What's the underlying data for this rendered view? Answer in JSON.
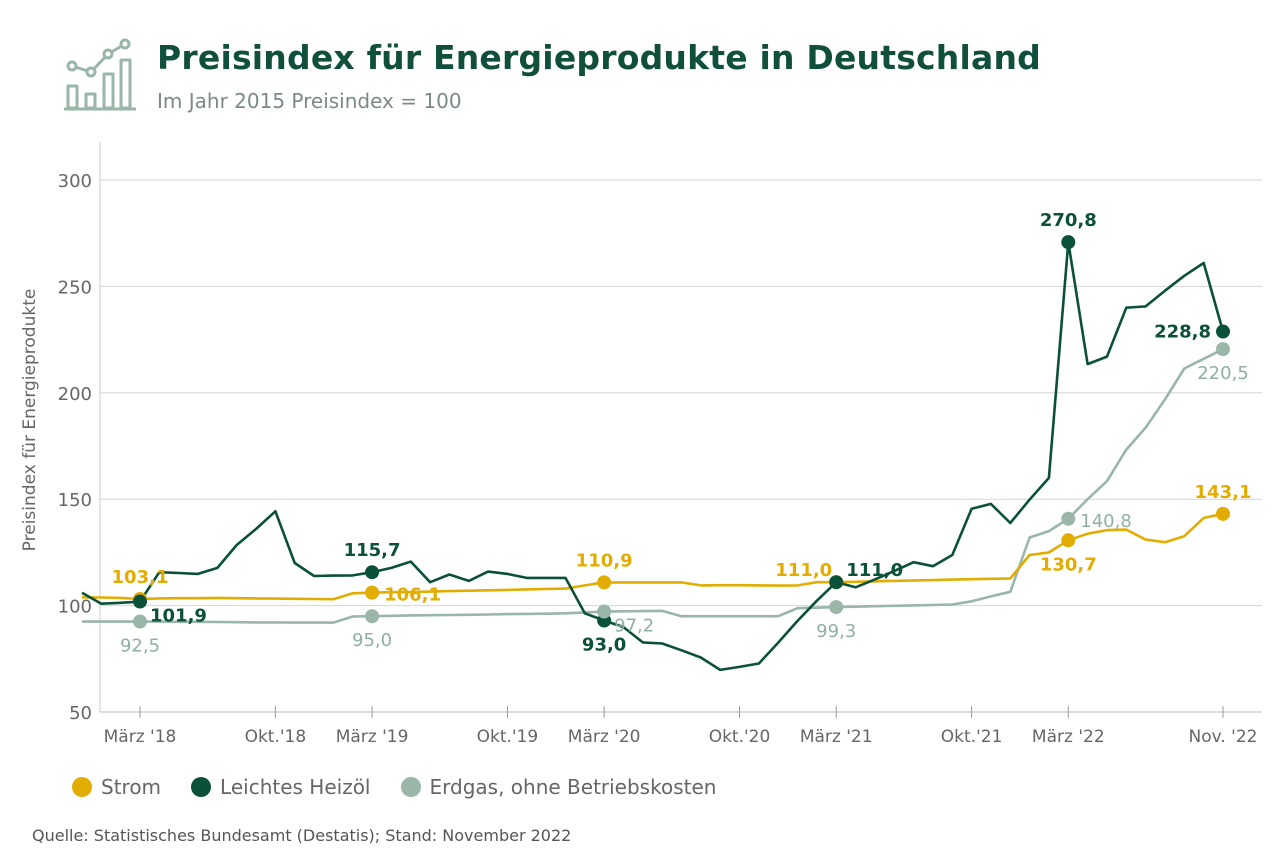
{
  "title": "Preisindex für Energieprodukte in Deutschland",
  "subtitle": "Im Jahr 2015 Preisindex = 100",
  "source": "Quelle: Statistisches Bundesamt (Destatis); Stand: November 2022",
  "legend": [
    {
      "label": "Strom",
      "color": "#e3ac00"
    },
    {
      "label": "Leichtes Heizöl",
      "color": "#0b5138"
    },
    {
      "label": "Erdgas, ohne Betriebskosten",
      "color": "#99b6a8"
    }
  ],
  "chart_data": {
    "type": "line",
    "ylabel": "Preisindex für Energieprodukte",
    "ylim": [
      50,
      320
    ],
    "yticks": [
      50,
      100,
      150,
      200,
      250,
      300
    ],
    "x_tick_labels": [
      "März '18",
      "Okt.'18",
      "März '19",
      "Okt.'19",
      "März '20",
      "Okt.'20",
      "März '21",
      "Okt.'21",
      "März '22",
      "Nov. '22"
    ],
    "x_tick_positions": [
      2,
      9,
      14,
      21,
      26,
      33,
      38,
      45,
      50,
      58
    ],
    "x_range": [
      -1,
      60
    ],
    "series": [
      {
        "name": "Strom",
        "color": "#e3ac00",
        "x": [
          -1,
          0,
          1,
          2,
          3,
          4,
          5,
          6,
          7,
          8,
          9,
          10,
          11,
          12,
          13,
          14,
          15,
          16,
          17,
          18,
          19,
          20,
          21,
          22,
          23,
          24,
          25,
          26,
          27,
          28,
          29,
          30,
          31,
          32,
          33,
          34,
          35,
          36,
          37,
          38,
          39,
          40,
          41,
          42,
          43,
          44,
          45,
          46,
          47,
          48,
          49,
          50,
          51,
          52,
          53,
          54,
          55,
          56,
          57,
          58
        ],
        "values": [
          103.9,
          103.8,
          103.6,
          103.1,
          103.4,
          103.5,
          103.5,
          103.6,
          103.5,
          103.4,
          103.3,
          103.2,
          103.1,
          103.0,
          105.8,
          106.1,
          106.3,
          106.4,
          106.6,
          106.8,
          107.0,
          107.2,
          107.4,
          107.6,
          107.8,
          108.0,
          109.5,
          110.9,
          110.9,
          110.9,
          110.9,
          110.9,
          109.5,
          109.6,
          109.6,
          109.5,
          109.4,
          109.5,
          111.0,
          111.0,
          111.2,
          111.4,
          111.6,
          111.8,
          112.0,
          112.2,
          112.4,
          112.6,
          112.8,
          123.8,
          125.0,
          130.7,
          133.8,
          135.5,
          135.7,
          131.0,
          129.8,
          132.6,
          141.2,
          143.1
        ]
      },
      {
        "name": "Leichtes Heizöl",
        "color": "#0b5138",
        "x": [
          -1,
          0,
          1,
          2,
          3,
          4,
          5,
          6,
          7,
          8,
          9,
          10,
          11,
          12,
          13,
          14,
          15,
          16,
          17,
          18,
          19,
          20,
          21,
          22,
          23,
          24,
          25,
          26,
          27,
          28,
          29,
          30,
          31,
          32,
          33,
          34,
          35,
          36,
          37,
          38,
          39,
          40,
          41,
          42,
          43,
          44,
          45,
          46,
          47,
          48,
          49,
          50,
          51,
          52,
          53,
          54,
          55,
          56,
          57,
          58
        ],
        "values": [
          106.0,
          100.9,
          101.3,
          101.9,
          115.7,
          115.3,
          114.9,
          117.7,
          128.5,
          136.0,
          144.3,
          120.0,
          113.9,
          114.1,
          114.2,
          115.7,
          117.7,
          120.7,
          111.0,
          114.6,
          111.6,
          116.0,
          114.9,
          113.0,
          113.0,
          113.0,
          96.4,
          93.0,
          89.9,
          82.7,
          82.2,
          79.0,
          75.6,
          69.8,
          71.2,
          72.8,
          82.6,
          92.8,
          102.3,
          111.0,
          108.6,
          112.3,
          116.2,
          120.4,
          118.5,
          123.8,
          145.5,
          147.8,
          138.8,
          149.8,
          160.0,
          270.8,
          213.5,
          217.0,
          240.0,
          240.6,
          248.0,
          255.0,
          261.0,
          228.8
        ]
      },
      {
        "name": "Erdgas, ohne Betriebskosten",
        "color": "#99b6a8",
        "x": [
          -1,
          0,
          1,
          2,
          3,
          4,
          5,
          6,
          7,
          8,
          9,
          10,
          11,
          12,
          13,
          14,
          15,
          16,
          17,
          18,
          19,
          20,
          21,
          22,
          23,
          24,
          25,
          26,
          27,
          28,
          29,
          30,
          31,
          32,
          33,
          34,
          35,
          36,
          37,
          38,
          39,
          40,
          41,
          42,
          43,
          44,
          45,
          46,
          47,
          48,
          49,
          50,
          51,
          52,
          53,
          54,
          55,
          56,
          57,
          58
        ],
        "values": [
          92.5,
          92.5,
          92.5,
          92.5,
          92.5,
          92.4,
          92.4,
          92.3,
          92.2,
          92.1,
          92.1,
          92.0,
          92.0,
          92.0,
          94.9,
          95.0,
          95.2,
          95.4,
          95.5,
          95.6,
          95.7,
          95.8,
          96.0,
          96.1,
          96.2,
          96.4,
          96.8,
          97.2,
          97.3,
          97.4,
          97.5,
          95.0,
          95.0,
          95.0,
          95.0,
          95.0,
          95.0,
          98.8,
          99.0,
          99.3,
          99.5,
          99.7,
          99.9,
          100.1,
          100.3,
          100.5,
          102.0,
          104.3,
          106.5,
          132.0,
          135.0,
          140.8,
          150.0,
          158.5,
          173.3,
          183.6,
          196.9,
          211.4,
          216.0,
          220.5
        ]
      }
    ],
    "annotations": [
      {
        "series": 0,
        "x": 2,
        "value": 103.1,
        "label": "103,1",
        "pos": "above"
      },
      {
        "series": 0,
        "x": 14,
        "value": 106.1,
        "label": "106,1",
        "pos": "right"
      },
      {
        "series": 0,
        "x": 26,
        "value": 110.9,
        "label": "110,9",
        "pos": "above"
      },
      {
        "series": 0,
        "x": 38,
        "value": 111.0,
        "label": "111,0",
        "pos": "above-left"
      },
      {
        "series": 0,
        "x": 50,
        "value": 130.7,
        "label": "130,7",
        "pos": "below"
      },
      {
        "series": 0,
        "x": 58,
        "value": 143.1,
        "label": "143,1",
        "pos": "above"
      },
      {
        "series": 1,
        "x": 2,
        "value": 101.9,
        "label": "101,9",
        "pos": "right-below"
      },
      {
        "series": 1,
        "x": 14,
        "value": 115.7,
        "label": "115,7",
        "pos": "above"
      },
      {
        "series": 1,
        "x": 26,
        "value": 93.0,
        "label": "93,0",
        "pos": "below"
      },
      {
        "series": 1,
        "x": 38,
        "value": 111.0,
        "label": "111,0",
        "pos": "above-right"
      },
      {
        "series": 1,
        "x": 50,
        "value": 270.8,
        "label": "270,8",
        "pos": "above"
      },
      {
        "series": 1,
        "x": 58,
        "value": 228.8,
        "label": "228,8",
        "pos": "left"
      },
      {
        "series": 2,
        "x": 2,
        "value": 92.5,
        "label": "92,5",
        "pos": "below"
      },
      {
        "series": 2,
        "x": 14,
        "value": 95.0,
        "label": "95,0",
        "pos": "below"
      },
      {
        "series": 2,
        "x": 26,
        "value": 97.2,
        "label": "97,2",
        "pos": "right-below"
      },
      {
        "series": 2,
        "x": 38,
        "value": 99.3,
        "label": "99,3",
        "pos": "below"
      },
      {
        "series": 2,
        "x": 50,
        "value": 140.8,
        "label": "140,8",
        "pos": "right"
      },
      {
        "series": 2,
        "x": 58,
        "value": 220.5,
        "label": "220,5",
        "pos": "below"
      }
    ]
  }
}
